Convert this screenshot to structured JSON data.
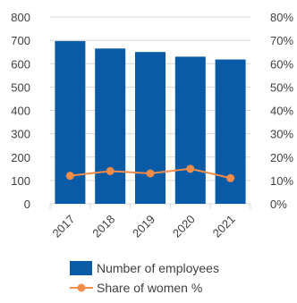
{
  "chart_data": {
    "type": "bar",
    "categories": [
      "2017",
      "2018",
      "2019",
      "2020",
      "2021"
    ],
    "series": [
      {
        "name": "Number of employees",
        "type": "bar",
        "axis": "left",
        "values": [
          697,
          665,
          650,
          630,
          618
        ]
      },
      {
        "name": "Share of women %",
        "type": "line",
        "axis": "right",
        "values": [
          12,
          14,
          13,
          15,
          11
        ]
      }
    ],
    "y_left": {
      "ylim": [
        0,
        800
      ],
      "ticks": [
        "0",
        "100",
        "200",
        "300",
        "400",
        "500",
        "600",
        "700",
        "800"
      ]
    },
    "y_right": {
      "ylim": [
        0,
        80
      ],
      "ticks": [
        "0%",
        "10%",
        "20%",
        "30%",
        "40%",
        "50%",
        "60%",
        "70%",
        "80%"
      ]
    },
    "grid": true,
    "legend_position": "bottom",
    "colors": {
      "bar": "#0a5ba6",
      "line": "#f28c4a",
      "grid": "#d9d9d9",
      "axis_text": "#404040"
    }
  }
}
